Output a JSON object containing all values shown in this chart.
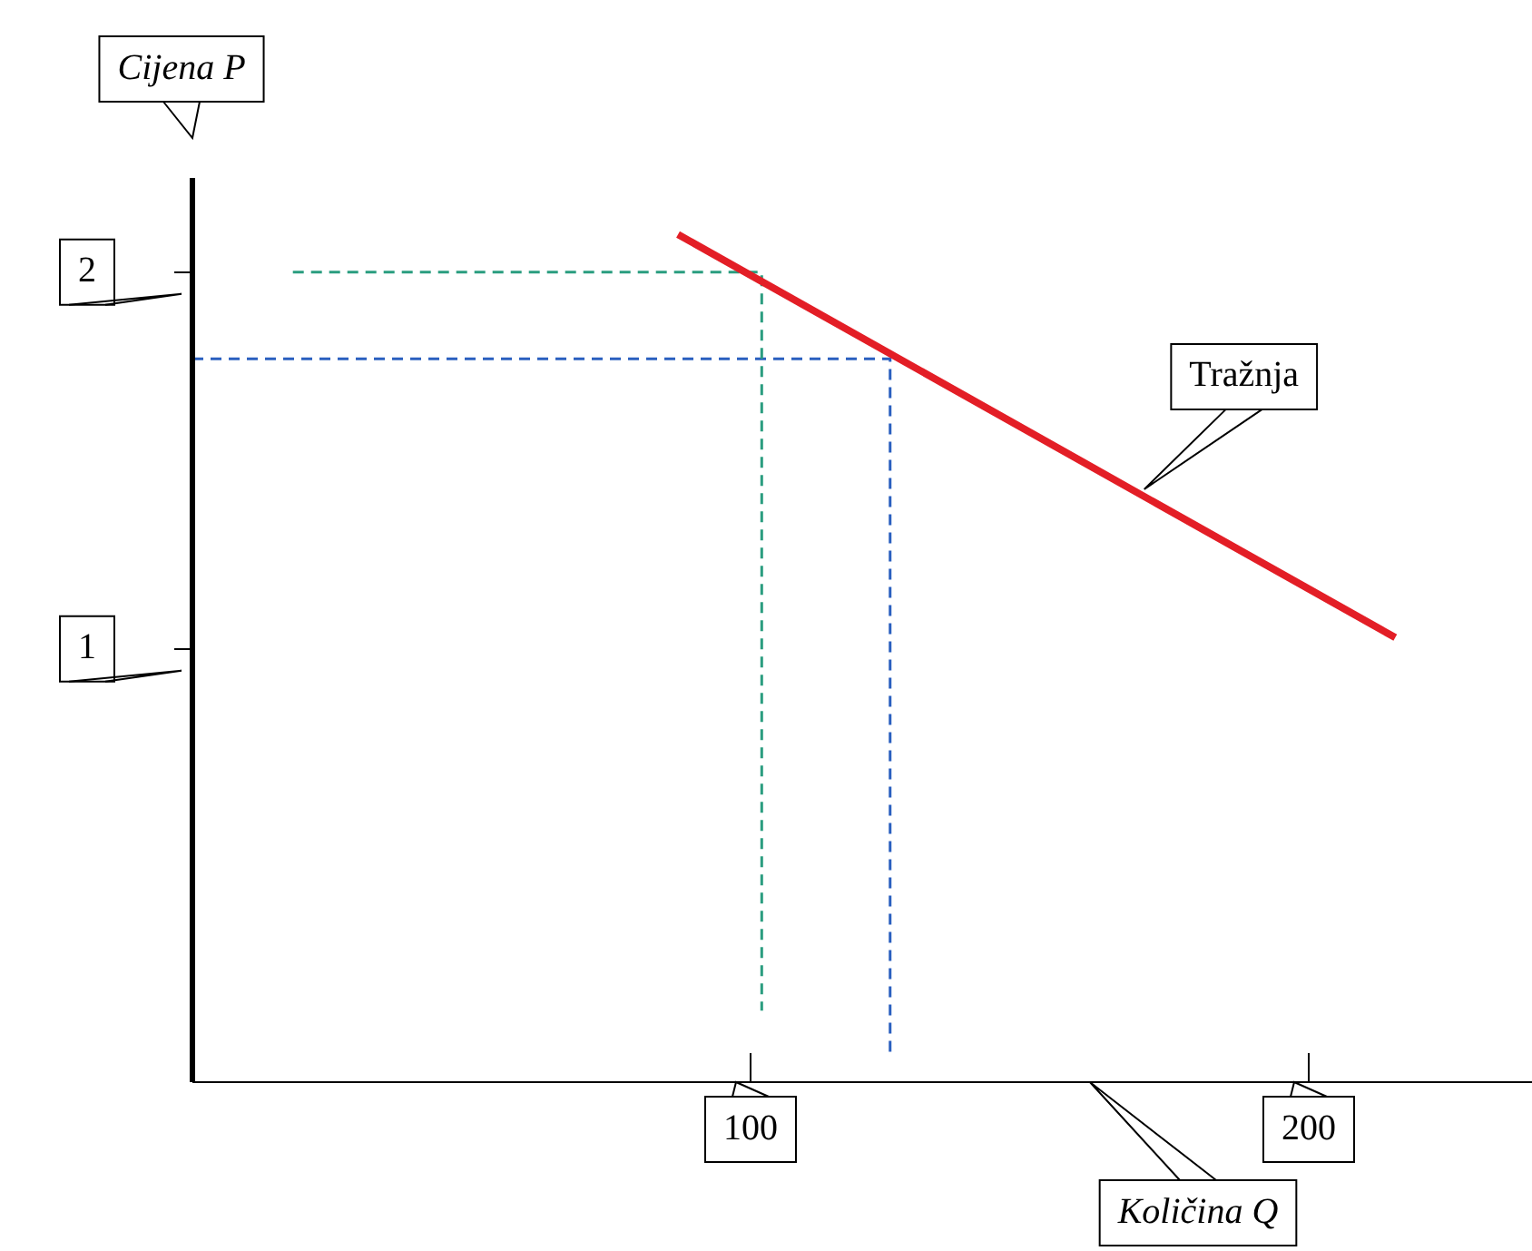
{
  "chart_data": {
    "type": "line",
    "xlabel": "Količina Q",
    "ylabel": "Cijena P",
    "xlim": [
      0,
      240
    ],
    "ylim": [
      -0.15,
      2.25
    ],
    "xticks": [
      100,
      200
    ],
    "yticks": [
      1,
      2
    ],
    "legend": false,
    "grid": false,
    "marker": "none",
    "series": [
      {
        "name": "Tražnja",
        "color": "#e31e26",
        "x": [
          87,
          215.5
        ],
        "values": [
          2.1,
          1.03
        ]
      },
      {
        "color": "#2a9d7f",
        "line_style": "dashed",
        "x": [
          18,
          102,
          102
        ],
        "values": [
          2,
          2,
          0.04
        ]
      },
      {
        "color": "#2a5fbf",
        "line_style": "dashed",
        "x": [
          0,
          125,
          125
        ],
        "values": [
          1.77,
          1.77,
          -0.07
        ]
      }
    ]
  }
}
